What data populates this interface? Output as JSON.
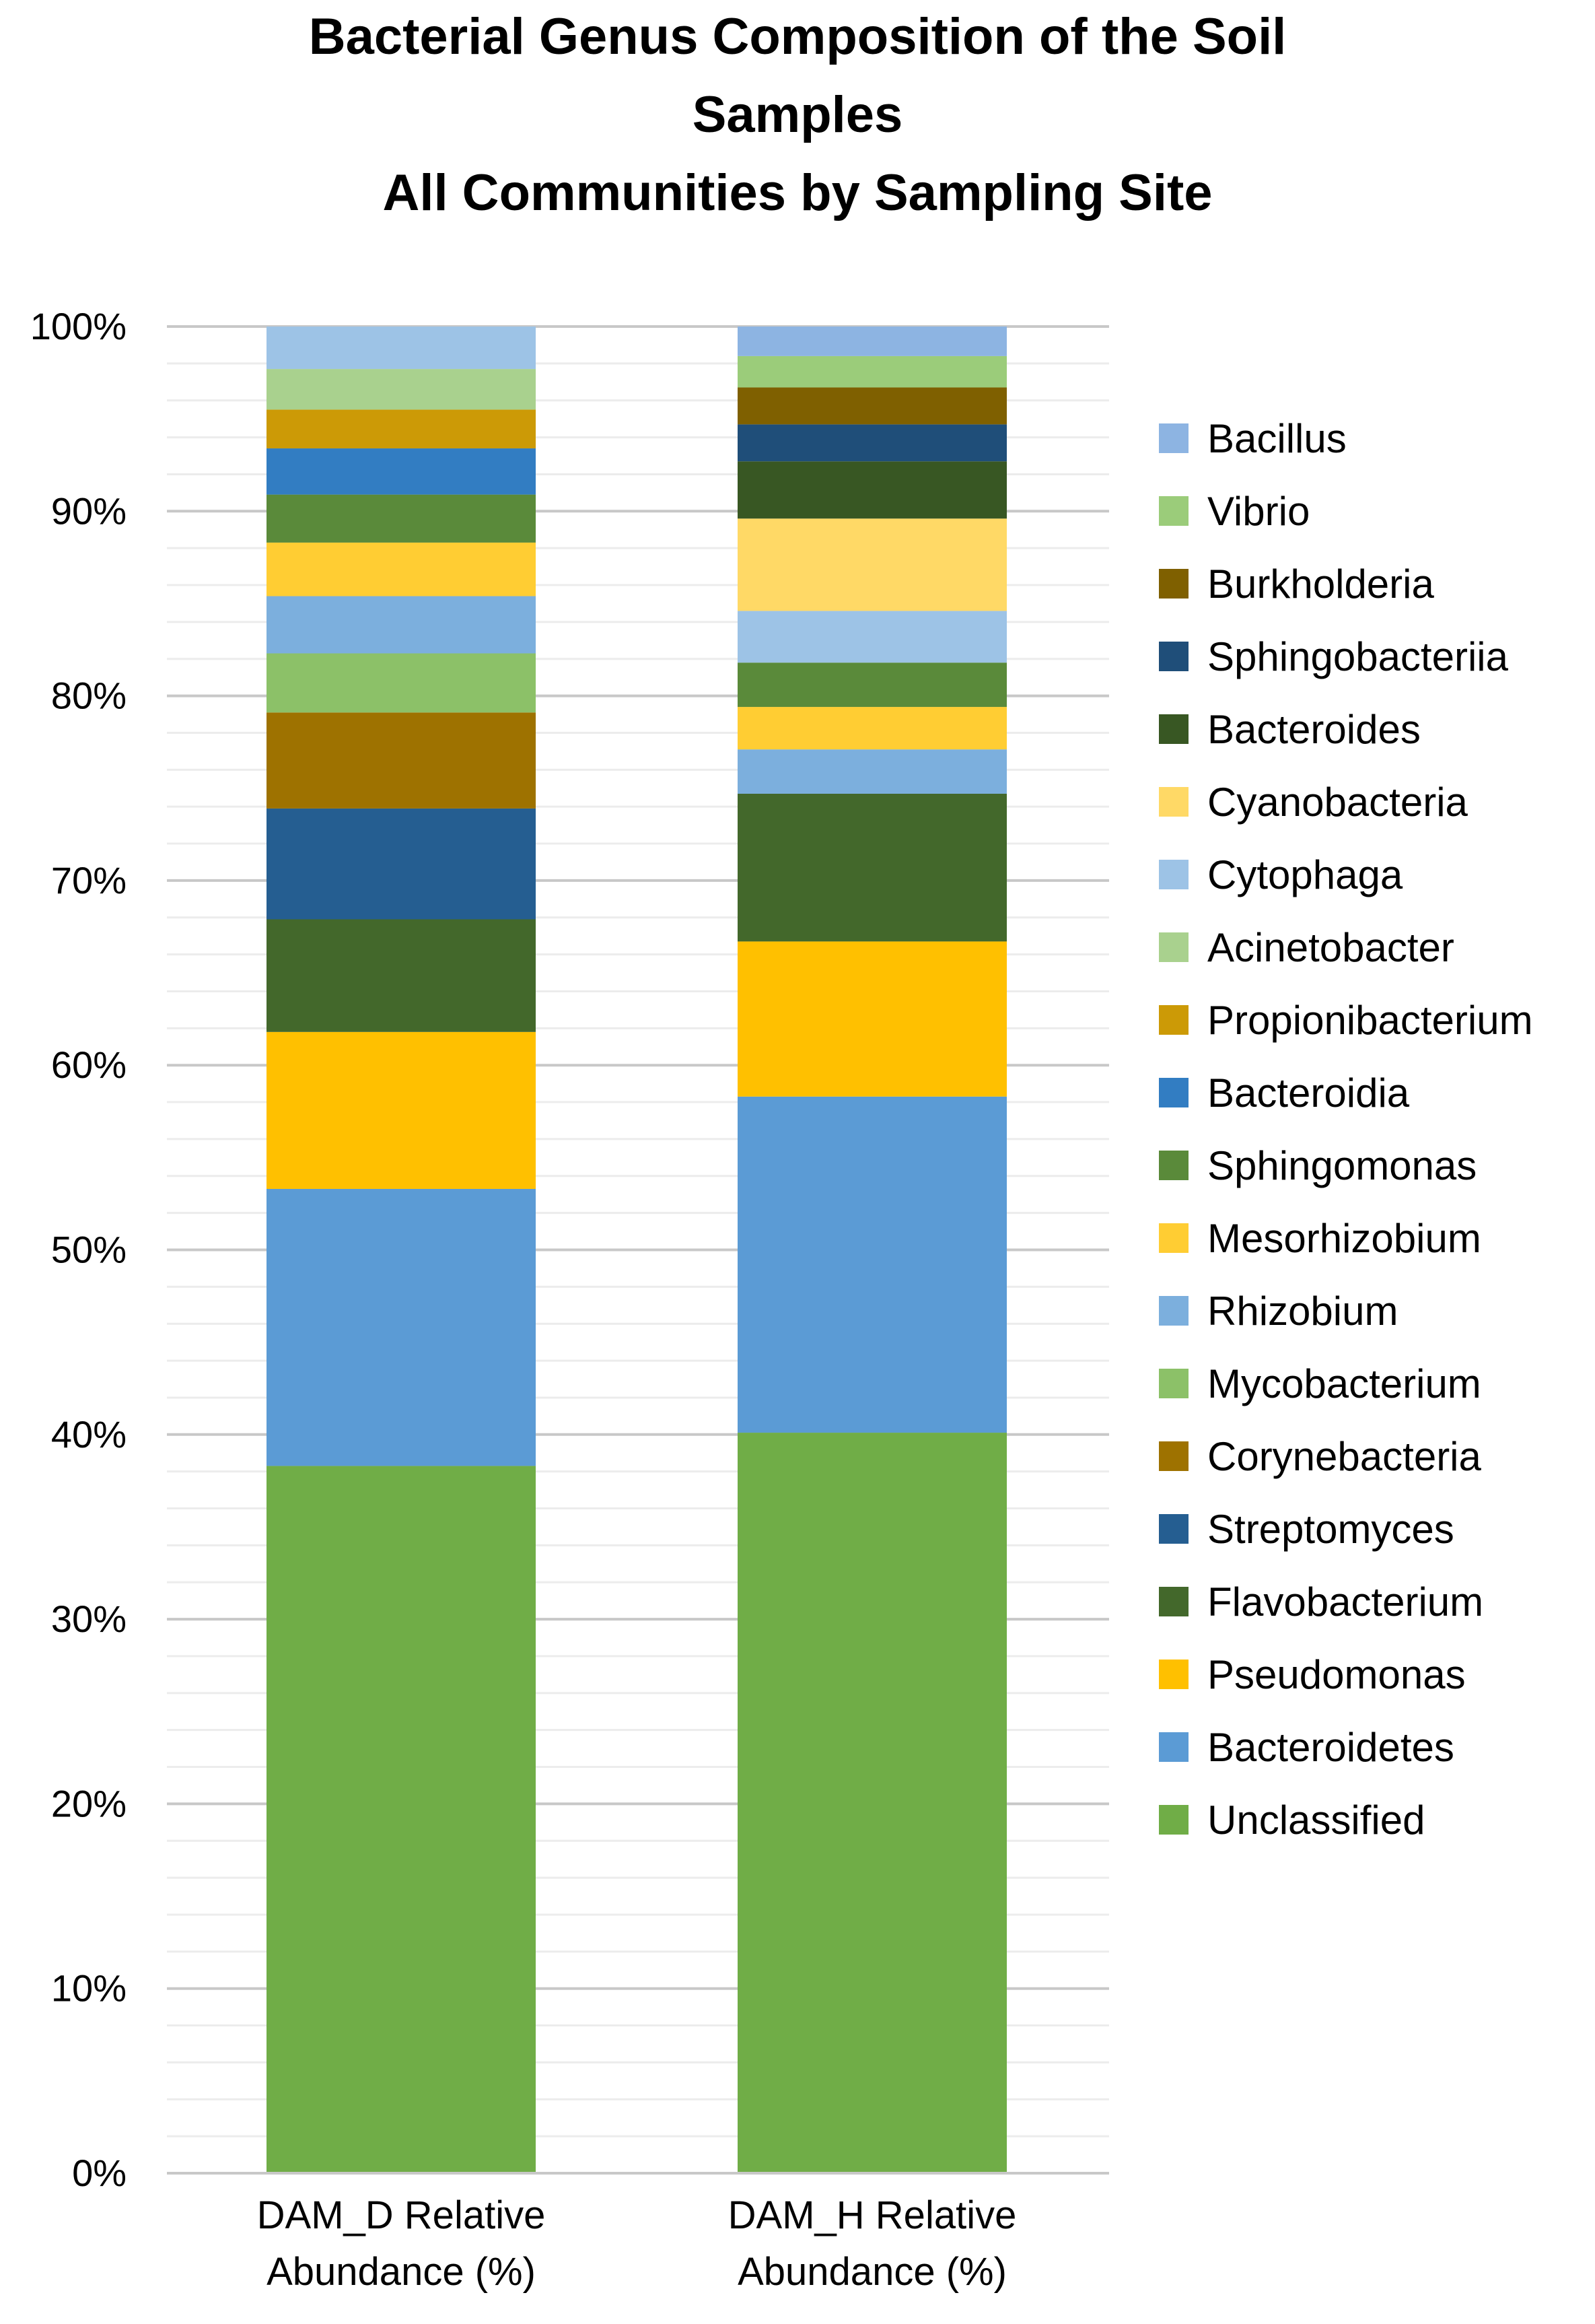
{
  "chart_data": {
    "type": "bar",
    "stacked": true,
    "title": [
      "Bacterial Genus Composition of the Soil",
      "Samples",
      "All Communities by Sampling Site"
    ],
    "ylim": [
      0,
      100
    ],
    "y_ticks": [
      "0%",
      "10%",
      "20%",
      "30%",
      "40%",
      "50%",
      "60%",
      "70%",
      "80%",
      "90%",
      "100%"
    ],
    "categories": [
      [
        "DAM_D Relative",
        "Abundance (%)"
      ],
      [
        "DAM_H Relative",
        "Abundance (%)"
      ]
    ],
    "legend_position": "right",
    "series": [
      {
        "name": "Unclassified",
        "color": "#70ad47",
        "values": [
          38.3,
          40.1
        ]
      },
      {
        "name": "Bacteroidetes",
        "color": "#5b9bd5",
        "values": [
          15.0,
          18.2
        ]
      },
      {
        "name": "Pseudomonas",
        "color": "#ffc000",
        "values": [
          8.5,
          8.4
        ]
      },
      {
        "name": "Flavobacterium",
        "color": "#43682b",
        "values": [
          6.1,
          8.0
        ]
      },
      {
        "name": "Streptomyces",
        "color": "#255e91",
        "values": [
          6.0,
          0
        ]
      },
      {
        "name": "Corynebacteria",
        "color": "#9e7200",
        "values": [
          5.2,
          0
        ]
      },
      {
        "name": "Mycobacterium",
        "color": "#8cc168",
        "values": [
          3.2,
          0
        ]
      },
      {
        "name": "Rhizobium",
        "color": "#7cafdd",
        "values": [
          3.1,
          2.4
        ]
      },
      {
        "name": "Mesorhizobium",
        "color": "#ffcd33",
        "values": [
          2.9,
          2.3
        ]
      },
      {
        "name": "Sphingomonas",
        "color": "#5a8a3a",
        "values": [
          2.6,
          2.4
        ]
      },
      {
        "name": "Bacteroidia",
        "color": "#327dc2",
        "values": [
          2.5,
          0
        ]
      },
      {
        "name": "Propionibacterium",
        "color": "#cc9a06",
        "values": [
          2.1,
          0
        ]
      },
      {
        "name": "Acinetobacter",
        "color": "#a9d18e",
        "values": [
          2.2,
          0
        ]
      },
      {
        "name": "Cytophaga",
        "color": "#9dc3e6",
        "values": [
          2.3,
          2.8
        ]
      },
      {
        "name": "Cyanobacteria",
        "color": "#ffd966",
        "values": [
          0,
          5.0
        ]
      },
      {
        "name": "Bacteroides",
        "color": "#385723",
        "values": [
          0,
          3.1
        ]
      },
      {
        "name": "Sphingobacteriia",
        "color": "#1f4e79",
        "values": [
          0,
          2.0
        ]
      },
      {
        "name": "Burkholderia",
        "color": "#7f6000",
        "values": [
          0,
          2.0
        ]
      },
      {
        "name": "Vibrio",
        "color": "#9bcc7a",
        "values": [
          0,
          1.7
        ]
      },
      {
        "name": "Bacillus",
        "color": "#8db4e2",
        "values": [
          0,
          1.6
        ]
      }
    ]
  }
}
